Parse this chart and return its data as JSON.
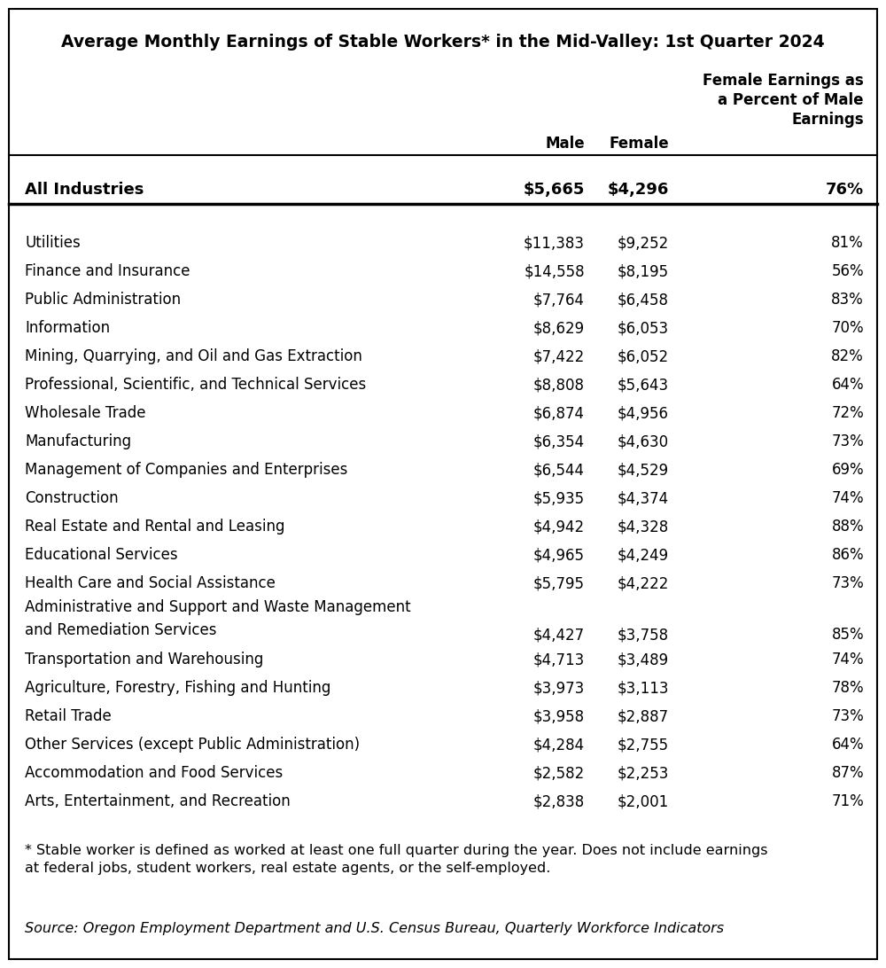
{
  "title": "Average Monthly Earnings of Stable Workers* in the Mid-Valley: 1st Quarter 2024",
  "bold_row": {
    "industry": "All Industries",
    "male": "$5,665",
    "female": "$4,296",
    "pct": "76%"
  },
  "rows": [
    {
      "industry": "Utilities",
      "male": "$11,383",
      "female": "$9,252",
      "pct": "81%"
    },
    {
      "industry": "Finance and Insurance",
      "male": "$14,558",
      "female": "$8,195",
      "pct": "56%"
    },
    {
      "industry": "Public Administration",
      "male": "$7,764",
      "female": "$6,458",
      "pct": "83%"
    },
    {
      "industry": "Information",
      "male": "$8,629",
      "female": "$6,053",
      "pct": "70%"
    },
    {
      "industry": "Mining, Quarrying, and Oil and Gas Extraction",
      "male": "$7,422",
      "female": "$6,052",
      "pct": "82%"
    },
    {
      "industry": "Professional, Scientific, and Technical Services",
      "male": "$8,808",
      "female": "$5,643",
      "pct": "64%"
    },
    {
      "industry": "Wholesale Trade",
      "male": "$6,874",
      "female": "$4,956",
      "pct": "72%"
    },
    {
      "industry": "Manufacturing",
      "male": "$6,354",
      "female": "$4,630",
      "pct": "73%"
    },
    {
      "industry": "Management of Companies and Enterprises",
      "male": "$6,544",
      "female": "$4,529",
      "pct": "69%"
    },
    {
      "industry": "Construction",
      "male": "$5,935",
      "female": "$4,374",
      "pct": "74%"
    },
    {
      "industry": "Real Estate and Rental and Leasing",
      "male": "$4,942",
      "female": "$4,328",
      "pct": "88%"
    },
    {
      "industry": "Educational Services",
      "male": "$4,965",
      "female": "$4,249",
      "pct": "86%"
    },
    {
      "industry": "Health Care and Social Assistance",
      "male": "$5,795",
      "female": "$4,222",
      "pct": "73%"
    },
    {
      "industry": "Administrative and Support and Waste Management\nand Remediation Services",
      "male": "$4,427",
      "female": "$3,758",
      "pct": "85%"
    },
    {
      "industry": "Transportation and Warehousing",
      "male": "$4,713",
      "female": "$3,489",
      "pct": "74%"
    },
    {
      "industry": "Agriculture, Forestry, Fishing and Hunting",
      "male": "$3,973",
      "female": "$3,113",
      "pct": "78%"
    },
    {
      "industry": "Retail Trade",
      "male": "$3,958",
      "female": "$2,887",
      "pct": "73%"
    },
    {
      "industry": "Other Services (except Public Administration)",
      "male": "$4,284",
      "female": "$2,755",
      "pct": "64%"
    },
    {
      "industry": "Accommodation and Food Services",
      "male": "$2,582",
      "female": "$2,253",
      "pct": "87%"
    },
    {
      "industry": "Arts, Entertainment, and Recreation",
      "male": "$2,838",
      "female": "$2,001",
      "pct": "71%"
    }
  ],
  "footnote_line1": "* Stable worker is defined as worked at least one full quarter during the year. Does not include earnings",
  "footnote_line2": "at federal jobs, student workers, real estate agents, or the self-employed.",
  "source": "Source: Oregon Employment Department and U.S. Census Bureau, Quarterly Workforce Indicators",
  "background_color": "#ffffff",
  "text_color": "#000000",
  "title_fontsize": 13.5,
  "header_fontsize": 12,
  "bold_row_fontsize": 13,
  "data_fontsize": 12,
  "footnote_fontsize": 11.5,
  "source_fontsize": 11.5
}
